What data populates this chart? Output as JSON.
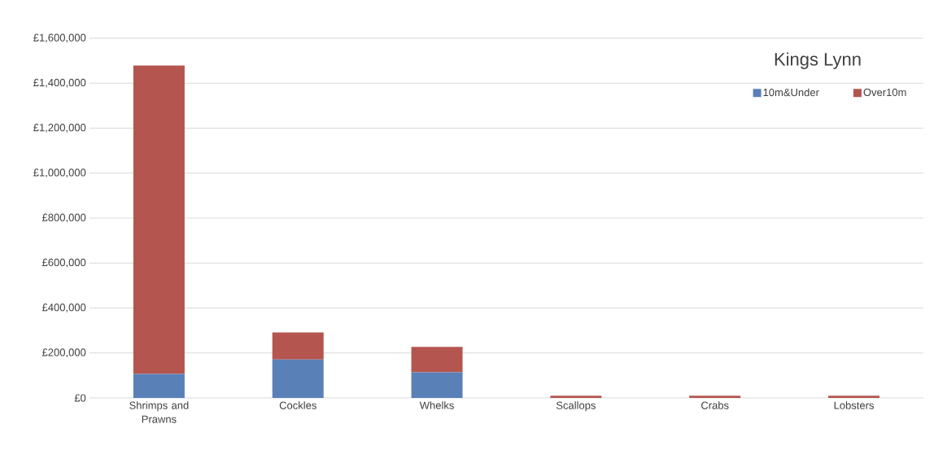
{
  "chart_data": {
    "type": "bar",
    "title": "Kings Lynn",
    "stacked": true,
    "categories": [
      "Shrimps and Prawns",
      "Cockles",
      "Whelks",
      "Scallops",
      "Crabs",
      "Lobsters"
    ],
    "series": [
      {
        "name": "10m&Under",
        "color": "#5a80b8",
        "values": [
          107000,
          171000,
          114000,
          0,
          0,
          0
        ]
      },
      {
        "name": "Over10m",
        "color": "#b4564f",
        "values": [
          1372000,
          120000,
          113000,
          10000,
          10000,
          10000
        ]
      }
    ],
    "ylim": [
      0,
      1600000
    ],
    "yticks": [
      {
        "value": 0,
        "label": "£0"
      },
      {
        "value": 200000,
        "label": "£200,000"
      },
      {
        "value": 400000,
        "label": "£400,000"
      },
      {
        "value": 600000,
        "label": "£600,000"
      },
      {
        "value": 800000,
        "label": "£800,000"
      },
      {
        "value": 1000000,
        "label": "£1,000,000"
      },
      {
        "value": 1200000,
        "label": "£1,200,000"
      },
      {
        "value": 1400000,
        "label": "£1,400,000"
      },
      {
        "value": 1600000,
        "label": "£1,600,000"
      }
    ],
    "grid": "y",
    "legend": "top right"
  }
}
